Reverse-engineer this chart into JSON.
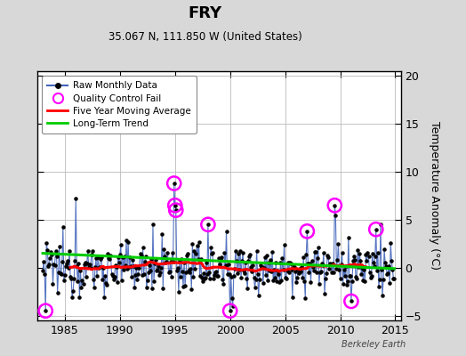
{
  "title": "FRY",
  "subtitle": "35.067 N, 111.850 W (United States)",
  "ylabel": "Temperature Anomaly (°C)",
  "credit": "Berkeley Earth",
  "xlim": [
    1982.5,
    2015.5
  ],
  "ylim": [
    -5.5,
    20.5
  ],
  "yticks": [
    -5,
    0,
    5,
    10,
    15,
    20
  ],
  "xticks": [
    1985,
    1990,
    1995,
    2000,
    2005,
    2010,
    2015
  ],
  "bg_color": "#d8d8d8",
  "plot_bg_color": "#ffffff",
  "grid_color": "#bbbbbb",
  "raw_color": "#4466bb",
  "raw_dot_color": "#000000",
  "ma_color": "#ff0000",
  "trend_color": "#00cc00",
  "qc_color": "#ff00ff",
  "seed": 12345
}
